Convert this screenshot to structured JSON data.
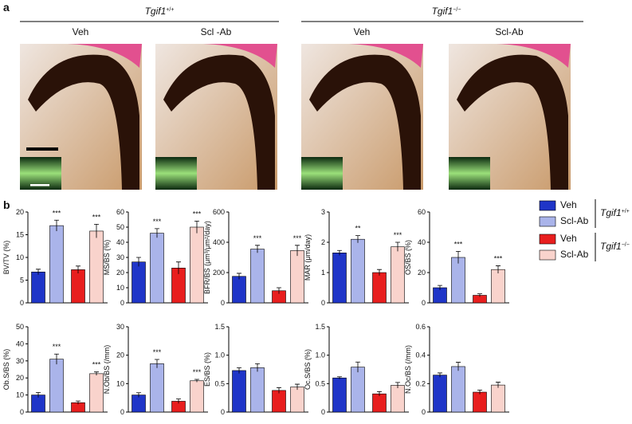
{
  "panel_a": {
    "label": "a",
    "groups": [
      {
        "gene": "Tgif1",
        "allele": "+/+",
        "columns": [
          "Veh",
          "Scl -Ab"
        ]
      },
      {
        "gene": "Tgif1",
        "allele": "−/−",
        "columns": [
          "Veh",
          "Scl-Ab"
        ]
      }
    ]
  },
  "panel_b": {
    "label": "b"
  },
  "legend": {
    "groups": [
      {
        "gene": "Tgif1",
        "allele": "+/+",
        "series": [
          {
            "name": "Veh",
            "color": "#1f35c8"
          },
          {
            "name": "Scl-Ab",
            "color": "#aab4ea"
          }
        ]
      },
      {
        "gene": "Tgif1",
        "allele": "−/−",
        "series": [
          {
            "name": "Veh",
            "color": "#e81e1e"
          },
          {
            "name": "Scl-Ab",
            "color": "#f9d3cc"
          }
        ]
      }
    ]
  },
  "chart_data": [
    {
      "type": "bar",
      "ylabel": "BV/TV (%)",
      "values": [
        6.8,
        17,
        7.3,
        15.8
      ],
      "errors": [
        0.6,
        1.2,
        0.8,
        1.5
      ],
      "annotations": [
        null,
        "***",
        null,
        "***"
      ],
      "ylim": [
        0,
        20
      ],
      "yticks": [
        0,
        5,
        10,
        15,
        20
      ]
    },
    {
      "type": "bar",
      "ylabel": "MS/BS (%)",
      "values": [
        27,
        46,
        23,
        50
      ],
      "errors": [
        3,
        3,
        4,
        4
      ],
      "annotations": [
        null,
        "***",
        null,
        "***"
      ],
      "ylim": [
        0,
        60
      ],
      "yticks": [
        0,
        10,
        20,
        30,
        40,
        50,
        60
      ]
    },
    {
      "type": "bar",
      "ylabel": "BFR/BS (μm³/μm²/day)",
      "values": [
        175,
        355,
        80,
        345
      ],
      "errors": [
        20,
        25,
        20,
        35
      ],
      "annotations": [
        null,
        "***",
        null,
        "***"
      ],
      "ylim": [
        0,
        600
      ],
      "yticks": [
        0,
        200,
        400,
        600
      ]
    },
    {
      "type": "bar",
      "ylabel": "MAR (μm/day)",
      "values": [
        1.65,
        2.1,
        1.0,
        1.85
      ],
      "errors": [
        0.08,
        0.12,
        0.1,
        0.15
      ],
      "annotations": [
        null,
        "**",
        null,
        "***"
      ],
      "ylim": [
        0,
        3
      ],
      "yticks": [
        0,
        1,
        2,
        3
      ]
    },
    {
      "type": "bar",
      "ylabel": "OS/BS (%)",
      "values": [
        10,
        30,
        5,
        22
      ],
      "errors": [
        1.5,
        4,
        1,
        2.5
      ],
      "annotations": [
        null,
        "***",
        null,
        "***"
      ],
      "ylim": [
        0,
        60
      ],
      "yticks": [
        0,
        20,
        40,
        60
      ]
    },
    {
      "type": "bar",
      "ylabel": "Ob.S/BS (%)",
      "values": [
        10,
        31,
        5.5,
        22.5
      ],
      "errors": [
        1.5,
        3,
        1,
        1
      ],
      "annotations": [
        null,
        "***",
        null,
        "***"
      ],
      "ylim": [
        0,
        50
      ],
      "yticks": [
        0,
        10,
        20,
        30,
        40,
        50
      ]
    },
    {
      "type": "bar",
      "ylabel": "N.Ob/BS (/mm)",
      "values": [
        6,
        17,
        3.8,
        11
      ],
      "errors": [
        0.8,
        1.5,
        0.8,
        0.5
      ],
      "annotations": [
        null,
        "***",
        null,
        "***"
      ],
      "ylim": [
        0,
        30
      ],
      "yticks": [
        0,
        10,
        20,
        30
      ]
    },
    {
      "type": "bar",
      "ylabel": "ES/BS (%)",
      "values": [
        0.73,
        0.78,
        0.38,
        0.44
      ],
      "errors": [
        0.05,
        0.07,
        0.05,
        0.05
      ],
      "ylim": [
        0,
        1.5
      ],
      "yticks": [
        0,
        0.5,
        {
          "value": 1,
          "label": "1.0"
        },
        1.5
      ]
    },
    {
      "type": "bar",
      "ylabel": "Oc.S/BS (%)",
      "values": [
        0.6,
        0.79,
        0.32,
        0.47
      ],
      "errors": [
        0.02,
        0.09,
        0.04,
        0.05
      ],
      "ylim": [
        0,
        1.5
      ],
      "yticks": [
        0,
        0.5,
        {
          "value": 1,
          "label": "1.0"
        },
        1.5
      ]
    },
    {
      "type": "bar",
      "ylabel": "N.Oc/BS (/mm)",
      "values": [
        0.26,
        0.32,
        0.14,
        0.19
      ],
      "errors": [
        0.015,
        0.03,
        0.015,
        0.02
      ],
      "ylim": [
        0,
        0.6
      ],
      "yticks": [
        0,
        0.2,
        0.4,
        0.6
      ]
    }
  ]
}
